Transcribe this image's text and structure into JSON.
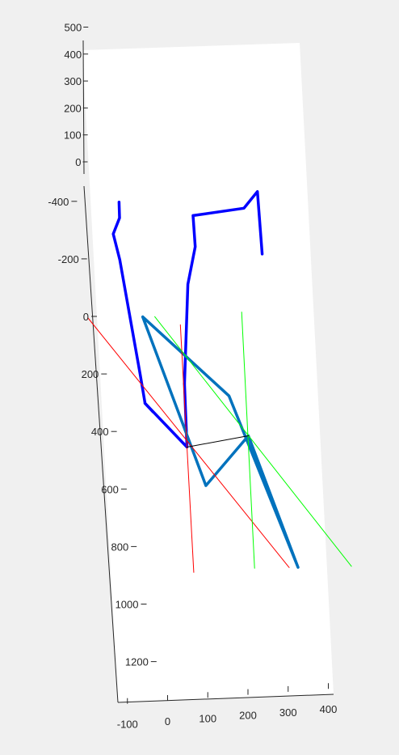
{
  "chart_data": {
    "type": "line",
    "title": "",
    "xlabel": "",
    "ylabel": "",
    "zlabel": "",
    "grid": false,
    "legend": "none",
    "x_ticks": [
      "-100",
      "0",
      "100",
      "200",
      "300",
      "400"
    ],
    "y_ticks": [
      "-400",
      "-200",
      "0",
      "200",
      "400",
      "600",
      "800",
      "1000",
      "1200"
    ],
    "z_ticks": [
      "0",
      "100",
      "200",
      "300",
      "400",
      "500"
    ],
    "colors": {
      "skeleton": "#0000ff",
      "polygon": "#0072bd",
      "red_lines": "#ff0000",
      "green_lines": "#00ff00",
      "connector": "#000000",
      "axes_background": "#ffffff",
      "figure_background": "#f0f0f0"
    },
    "series": [
      {
        "color": "#0000ff",
        "x": [
          -97,
          -99,
          -118,
          -107,
          -80,
          -74,
          -56
        ],
        "y": [
          -400,
          -345,
          -290,
          -200,
          200,
          300,
          330
        ]
      },
      {
        "color": "#0000ff",
        "x": [
          28,
          57,
          83,
          84,
          212,
          249,
          248
        ],
        "y": [
          235,
          -110,
          -240,
          -348,
          -370,
          -427,
          -210
        ]
      },
      {
        "color": "#0000ff",
        "x": [
          -74,
          21,
          28
        ],
        "y": [
          300,
          455,
          235
        ]
      },
      {
        "color": "#0072bd",
        "x": [
          -62,
          60,
          176,
          272,
          136,
          -62
        ],
        "y": [
          0,
          590,
          420,
          880,
          280,
          0
        ]
      },
      {
        "color": "#ff0000",
        "x": [
          -198,
          250
        ],
        "y": [
          0,
          880
        ]
      },
      {
        "color": "#ff0000",
        "x": [
          12,
          30
        ],
        "y": [
          890,
          30
        ]
      },
      {
        "color": "#00ff00",
        "x": [
          -32,
          405
        ],
        "y": [
          0,
          880
        ]
      },
      {
        "color": "#00ff00",
        "x": [
          164,
          185
        ],
        "y": [
          880,
          -10
        ]
      },
      {
        "color": "#000000",
        "x": [
          21,
          176
        ],
        "y": [
          455,
          420
        ]
      }
    ]
  }
}
